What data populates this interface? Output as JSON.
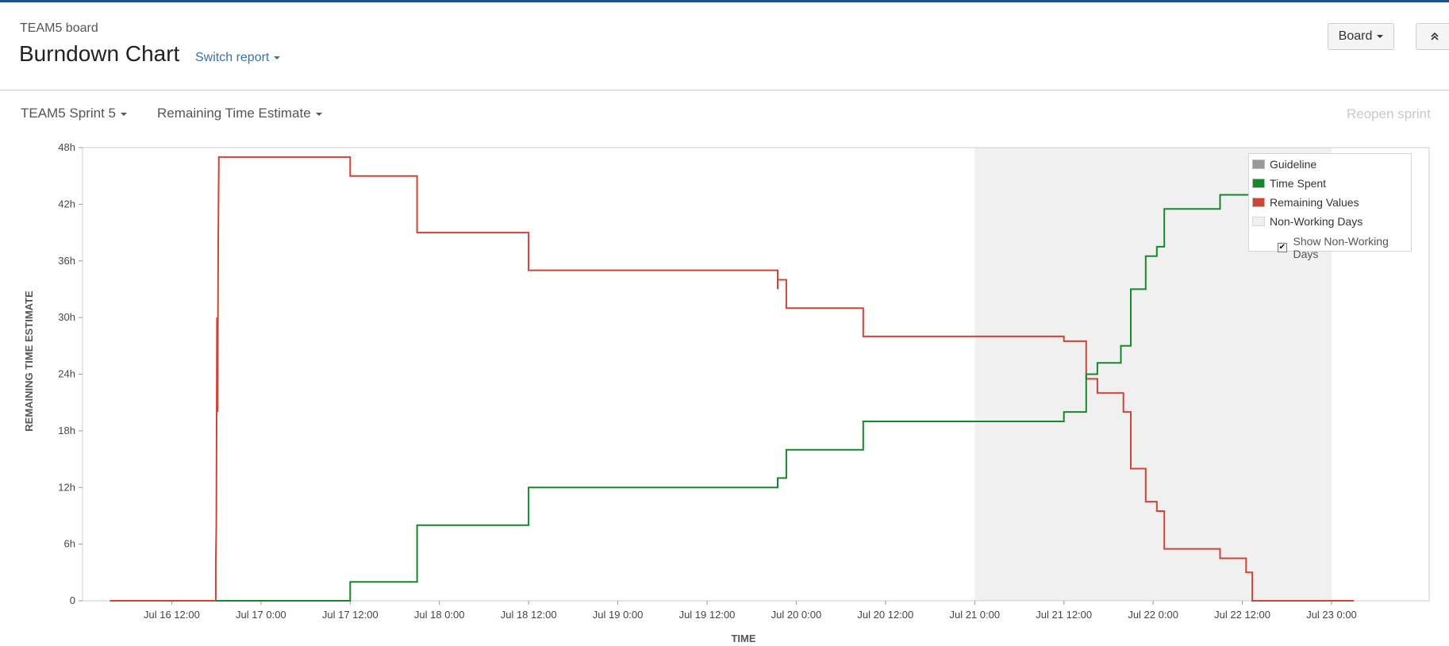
{
  "header": {
    "board_name": "TEAM5 board",
    "title": "Burndown Chart",
    "switch_report": "Switch report",
    "board_button": "Board",
    "collapse_icon": "chevron-double-up-icon"
  },
  "toolbar": {
    "sprint": "TEAM5 Sprint 5",
    "estimate": "Remaining Time Estimate",
    "reopen": "Reopen sprint"
  },
  "chart_data": {
    "type": "line",
    "step": true,
    "xlabel": "TIME",
    "ylabel": "REMAINING TIME ESTIMATE",
    "xlim": [
      "Jul 16 0:00",
      "Jul 23 0:00"
    ],
    "ylim": [
      0,
      48
    ],
    "y_unit": "h",
    "x_ticks": [
      "Jul 16 12:00",
      "Jul 17 0:00",
      "Jul 17 12:00",
      "Jul 18 0:00",
      "Jul 18 12:00",
      "Jul 19 0:00",
      "Jul 19 12:00",
      "Jul 20 0:00",
      "Jul 20 12:00",
      "Jul 21 0:00",
      "Jul 21 12:00",
      "Jul 22 0:00",
      "Jul 22 12:00",
      "Jul 23 0:00"
    ],
    "y_ticks": [
      "0",
      "6h",
      "12h",
      "18h",
      "24h",
      "30h",
      "36h",
      "42h",
      "48h"
    ],
    "non_working": [
      [
        "Jul 21 0:00",
        "Jul 23 0:00"
      ]
    ],
    "grid": false,
    "legend": {
      "position": "top-right",
      "items": [
        {
          "name": "Guideline",
          "color": "#999999"
        },
        {
          "name": "Time Spent",
          "color": "#14892c"
        },
        {
          "name": "Remaining Values",
          "color": "#d04437"
        },
        {
          "name": "Non-Working Days",
          "color": "#f0f0f0"
        }
      ],
      "show_non_working_label": "Show Non-Working Days",
      "show_non_working_checked": true
    },
    "series": [
      {
        "name": "Remaining Values",
        "color": "#d04437",
        "points": [
          [
            "Jul 16 3:40",
            0
          ],
          [
            "Jul 16 17:55",
            0
          ],
          [
            "Jul 16 17:55",
            4
          ],
          [
            "Jul 16 18:00",
            8
          ],
          [
            "Jul 16 18:05",
            30
          ],
          [
            "Jul 16 18:10",
            20
          ],
          [
            "Jul 16 18:15",
            38
          ],
          [
            "Jul 16 18:20",
            47
          ],
          [
            "Jul 17 12:00",
            47
          ],
          [
            "Jul 17 12:00",
            45
          ],
          [
            "Jul 17 21:00",
            45
          ],
          [
            "Jul 17 21:00",
            39
          ],
          [
            "Jul 18 12:00",
            39
          ],
          [
            "Jul 18 12:00",
            35
          ],
          [
            "Jul 19 21:30",
            35
          ],
          [
            "Jul 19 21:30",
            33
          ],
          [
            "Jul 19 21:30",
            34
          ],
          [
            "Jul 19 22:40",
            34
          ],
          [
            "Jul 19 22:40",
            31
          ],
          [
            "Jul 20 9:00",
            31
          ],
          [
            "Jul 20 9:00",
            28
          ],
          [
            "Jul 21 12:00",
            28
          ],
          [
            "Jul 21 12:00",
            27.5
          ],
          [
            "Jul 21 15:00",
            27.5
          ],
          [
            "Jul 21 15:00",
            23.5
          ],
          [
            "Jul 21 16:30",
            23.5
          ],
          [
            "Jul 21 16:30",
            22
          ],
          [
            "Jul 21 20:00",
            22
          ],
          [
            "Jul 21 20:00",
            20
          ],
          [
            "Jul 21 21:00",
            20
          ],
          [
            "Jul 21 21:00",
            14
          ],
          [
            "Jul 21 23:00",
            14
          ],
          [
            "Jul 21 23:00",
            10.5
          ],
          [
            "Jul 22 0:30",
            10.5
          ],
          [
            "Jul 22 0:30",
            9.5
          ],
          [
            "Jul 22 1:30",
            9.5
          ],
          [
            "Jul 22 1:30",
            5.5
          ],
          [
            "Jul 22 9:00",
            5.5
          ],
          [
            "Jul 22 9:00",
            4.5
          ],
          [
            "Jul 22 12:30",
            4.5
          ],
          [
            "Jul 22 12:30",
            3
          ],
          [
            "Jul 22 13:20",
            3
          ],
          [
            "Jul 22 13:20",
            0
          ],
          [
            "Jul 23 3:00",
            0
          ]
        ]
      },
      {
        "name": "Time Spent",
        "color": "#14892c",
        "points": [
          [
            "Jul 16 17:55",
            0
          ],
          [
            "Jul 17 12:00",
            0
          ],
          [
            "Jul 17 12:00",
            2
          ],
          [
            "Jul 17 21:00",
            2
          ],
          [
            "Jul 17 21:00",
            8
          ],
          [
            "Jul 18 12:00",
            8
          ],
          [
            "Jul 18 12:00",
            12
          ],
          [
            "Jul 19 21:30",
            12
          ],
          [
            "Jul 19 21:30",
            13
          ],
          [
            "Jul 19 22:40",
            13
          ],
          [
            "Jul 19 22:40",
            16
          ],
          [
            "Jul 20 9:00",
            16
          ],
          [
            "Jul 20 9:00",
            19
          ],
          [
            "Jul 21 12:00",
            19
          ],
          [
            "Jul 21 12:00",
            20
          ],
          [
            "Jul 21 15:00",
            20
          ],
          [
            "Jul 21 15:00",
            24
          ],
          [
            "Jul 21 16:30",
            24
          ],
          [
            "Jul 21 16:30",
            25.2
          ],
          [
            "Jul 21 19:40",
            25.2
          ],
          [
            "Jul 21 19:40",
            27
          ],
          [
            "Jul 21 21:00",
            27
          ],
          [
            "Jul 21 21:00",
            33
          ],
          [
            "Jul 21 23:00",
            33
          ],
          [
            "Jul 21 23:00",
            36.5
          ],
          [
            "Jul 22 0:30",
            36.5
          ],
          [
            "Jul 22 0:30",
            37.5
          ],
          [
            "Jul 22 1:30",
            37.5
          ],
          [
            "Jul 22 1:30",
            41.5
          ],
          [
            "Jul 22 9:00",
            41.5
          ],
          [
            "Jul 22 9:00",
            43
          ],
          [
            "Jul 22 13:20",
            43
          ],
          [
            "Jul 22 13:20",
            47
          ],
          [
            "Jul 23 3:00",
            47
          ]
        ]
      }
    ]
  }
}
